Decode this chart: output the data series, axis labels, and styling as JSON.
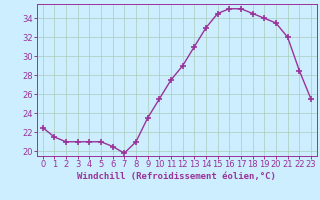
{
  "x": [
    0,
    1,
    2,
    3,
    4,
    5,
    6,
    7,
    8,
    9,
    10,
    11,
    12,
    13,
    14,
    15,
    16,
    17,
    18,
    19,
    20,
    21,
    22,
    23
  ],
  "y": [
    22.5,
    21.5,
    21.0,
    21.0,
    21.0,
    21.0,
    20.5,
    19.8,
    21.0,
    23.5,
    25.5,
    27.5,
    29.0,
    31.0,
    33.0,
    34.5,
    35.0,
    35.0,
    34.5,
    34.0,
    33.5,
    32.0,
    28.5,
    25.5
  ],
  "line_color": "#993399",
  "marker": "+",
  "marker_size": 4,
  "marker_lw": 1.2,
  "line_width": 1.0,
  "bg_color": "#cceeff",
  "grid_color": "#aaccbb",
  "xlabel": "Windchill (Refroidissement éolien,°C)",
  "ylim": [
    19.5,
    35.5
  ],
  "xlim": [
    -0.5,
    23.5
  ],
  "yticks": [
    20,
    22,
    24,
    26,
    28,
    30,
    32,
    34
  ],
  "xtick_labels": [
    "0",
    "1",
    "2",
    "3",
    "4",
    "5",
    "6",
    "7",
    "8",
    "9",
    "10",
    "11",
    "12",
    "13",
    "14",
    "15",
    "16",
    "17",
    "18",
    "19",
    "20",
    "21",
    "22",
    "23"
  ],
  "tick_color": "#993399",
  "label_fontsize": 6.5,
  "tick_fontsize": 6.0
}
